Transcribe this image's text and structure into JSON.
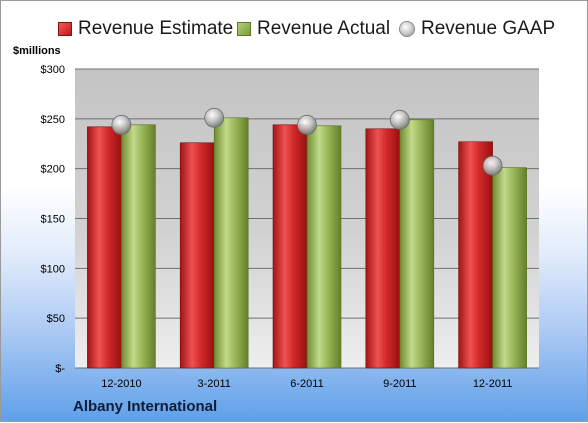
{
  "legend": {
    "estimate_label": "Revenue Estimate",
    "actual_label": "Revenue Actual",
    "gaap_label": "Revenue GAAP"
  },
  "unit_label": "$millions",
  "company": "Albany International",
  "colors": {
    "estimate": "#d42a2a",
    "actual": "#9bb85a",
    "gaap": "#c8c8c8",
    "plot_background": "#c8c8c8"
  },
  "chart_data": {
    "type": "bar",
    "categories": [
      "12-2010",
      "3-2011",
      "6-2011",
      "9-2011",
      "12-2011"
    ],
    "series": [
      {
        "name": "Revenue Estimate",
        "values": [
          242,
          226,
          244,
          240,
          227
        ]
      },
      {
        "name": "Revenue Actual",
        "values": [
          244,
          251,
          243,
          249,
          201
        ]
      },
      {
        "name": "Revenue GAAP",
        "marker": "bubble",
        "values": [
          244,
          251,
          244,
          249,
          203
        ]
      }
    ],
    "ylim": [
      0,
      300
    ],
    "yticks": [
      0,
      50,
      100,
      150,
      200,
      250,
      300
    ],
    "ytick_labels": [
      "$-",
      "$50",
      "$100",
      "$150",
      "$200",
      "$250",
      "$300"
    ],
    "ylabel": "$millions",
    "grid": true,
    "legend_position": "top"
  }
}
